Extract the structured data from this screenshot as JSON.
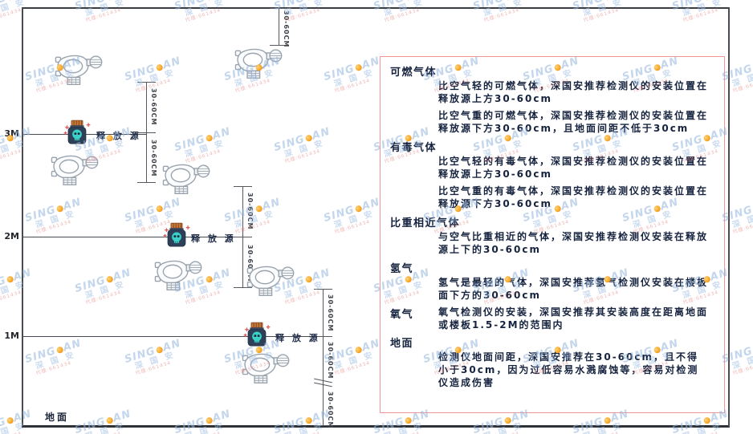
{
  "watermark": {
    "brand_left": "SING",
    "brand_right": "AN",
    "cn": "深 国 安",
    "tagline": "代理:661434"
  },
  "axis": {
    "levels": [
      "3M",
      "2M",
      "1M"
    ],
    "ground_label": "地面"
  },
  "diagram": {
    "release_source_label": "释 放 源",
    "dim_label": "30-60CM"
  },
  "panel": {
    "sections": [
      {
        "heading": "可燃气体",
        "paragraphs": [
          "比空气轻的可燃气体，深国安推荐检测仪的安装位置在释放源上方30-60cm",
          "比空气重的可燃气体，深国安推荐检测仪的安装位置在释放源下方30-60cm，且地面间距不低于30cm"
        ]
      },
      {
        "heading": "有毒气体",
        "paragraphs": [
          "比空气轻的有毒气体，深国安推荐检测仪的安装位置在释放源上方30-60cm",
          "比空气重的有毒气体，深国安推荐检测仪的安装位置在释放源下方30-60cm"
        ]
      },
      {
        "heading": "比重相近气体",
        "paragraphs": [
          "与空气比重相近的气体，深国安推荐检测仪安装在释放源上下的30-60cm"
        ]
      },
      {
        "heading": "氢气",
        "paragraphs": [
          "氢气是最轻的气体，深国安推荐氢气检测仪安装在楼板面下方的30-60cm"
        ]
      },
      {
        "heading": "氧气",
        "paragraphs": [
          "氧气检测仪的安装，深国安推荐其安装高度在距离地面或楼板1.5-2M的范围内"
        ]
      },
      {
        "heading": "地面",
        "paragraphs": [
          "检测仪地面间距，深国安推荐在30-60cm，且不得小于30cm，因为过低容易水溅腐蚀等，容易对检测仪造成伤害"
        ]
      }
    ]
  },
  "colors": {
    "panel_border": "#f09494",
    "watermark_blue": "#a9c6e4",
    "watermark_orange": "#f5a623",
    "watermark_red": "#e08a8a",
    "source_body": "#2e4058",
    "source_cap": "#c8793a",
    "source_skull": "#3ad2c6",
    "line": "#474c52"
  }
}
